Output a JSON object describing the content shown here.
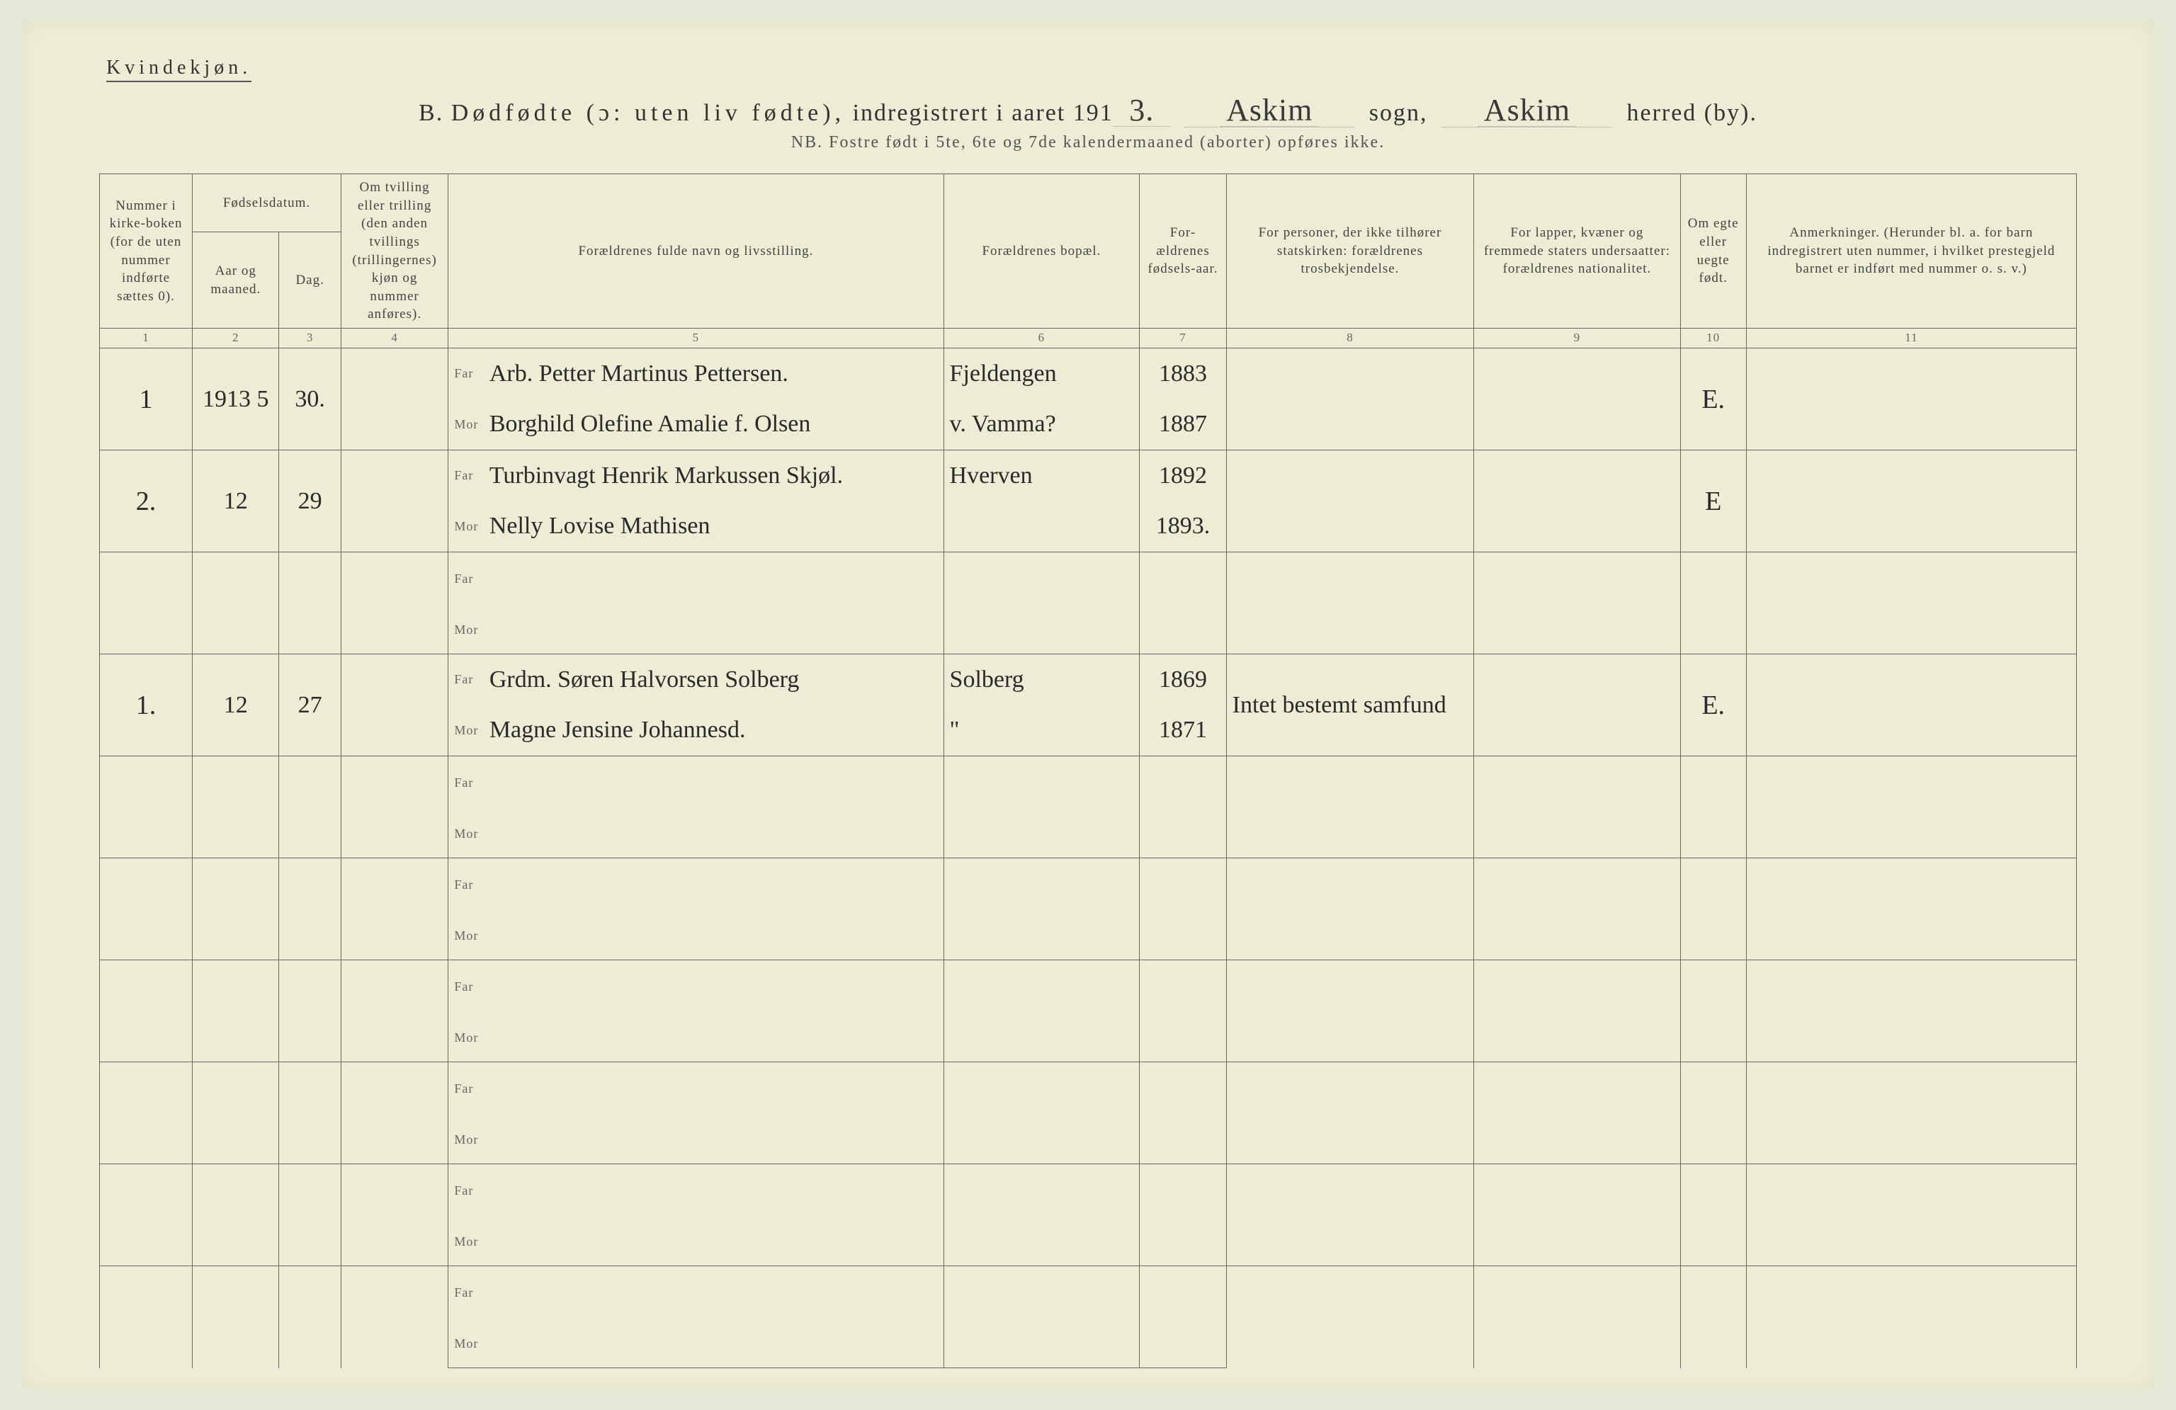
{
  "top_label": "Kvindekjøn.",
  "header": {
    "prefix": "B.",
    "title_sp": "Dødfødte (ɔ: uten liv fødte),",
    "registered": "indregistrert i aaret 191",
    "year_suffix": "3.",
    "sogn_value": "Askim",
    "sogn_label": "sogn,",
    "herred_value": "Askim",
    "herred_label": "herred (by)."
  },
  "nb_line": "NB. Fostre født i 5te, 6te og 7de kalendermaaned (aborter) opføres ikke.",
  "columns": {
    "c1": "Nummer i kirke-boken (for de uten nummer indførte sættes 0).",
    "c2_top": "Fødselsdatum.",
    "c2a": "Aar og maaned.",
    "c2b": "Dag.",
    "c4": "Om tvilling eller trilling (den anden tvillings (trillingernes) kjøn og nummer anføres).",
    "c5": "Forældrenes fulde navn og livsstilling.",
    "c6": "Forældrenes bopæl.",
    "c7": "For-ældrenes fødsels-aar.",
    "c8": "For personer, der ikke tilhører statskirken: forældrenes trosbekjendelse.",
    "c9": "For lapper, kvæner og fremmede staters undersaatter: forældrenes nationalitet.",
    "c10": "Om egte eller uegte født.",
    "c11": "Anmerkninger. (Herunder bl. a. for barn indregistrert uten nummer, i hvilket prestegjeld barnet er indført med nummer o. s. v.)"
  },
  "colnums": [
    "1",
    "2",
    "3",
    "4",
    "5",
    "6",
    "7",
    "8",
    "9",
    "10",
    "11"
  ],
  "far_label": "Far",
  "mor_label": "Mor",
  "rows": [
    {
      "num": "1",
      "year_month": "1913 5",
      "day": "30.",
      "twin": "",
      "far_name": "Arb. Petter Martinus Pettersen.",
      "mor_name": "Borghild Olefine Amalie f. Olsen",
      "far_bopel": "Fjeldengen",
      "mor_bopel": "v. Vamma?",
      "far_year": "1883",
      "mor_year": "1887",
      "tros": "",
      "nat": "",
      "egte": "E.",
      "anm": ""
    },
    {
      "num": "2.",
      "year_month": "12",
      "day": "29",
      "twin": "",
      "far_name": "Turbinvagt Henrik Markussen Skjøl.",
      "mor_name": "Nelly Lovise Mathisen",
      "far_bopel": "Hverven",
      "mor_bopel": "",
      "far_year": "1892",
      "mor_year": "1893.",
      "tros": "",
      "nat": "",
      "egte": "E",
      "anm": ""
    },
    {
      "num": "",
      "year_month": "",
      "day": "",
      "twin": "",
      "far_name": "",
      "mor_name": "",
      "far_bopel": "",
      "mor_bopel": "",
      "far_year": "",
      "mor_year": "",
      "tros": "",
      "nat": "",
      "egte": "",
      "anm": ""
    },
    {
      "num": "1.",
      "year_month": "12",
      "day": "27",
      "twin": "",
      "far_name": "Grdm. Søren Halvorsen Solberg",
      "mor_name": "Magne Jensine Johannesd.",
      "far_bopel": "Solberg",
      "mor_bopel": "\"",
      "far_year": "1869",
      "mor_year": "1871",
      "tros": "Intet bestemt samfund",
      "nat": "",
      "egte": "E.",
      "anm": ""
    },
    {
      "num": "",
      "year_month": "",
      "day": "",
      "twin": "",
      "far_name": "",
      "mor_name": "",
      "far_bopel": "",
      "mor_bopel": "",
      "far_year": "",
      "mor_year": "",
      "tros": "",
      "nat": "",
      "egte": "",
      "anm": ""
    },
    {
      "num": "",
      "year_month": "",
      "day": "",
      "twin": "",
      "far_name": "",
      "mor_name": "",
      "far_bopel": "",
      "mor_bopel": "",
      "far_year": "",
      "mor_year": "",
      "tros": "",
      "nat": "",
      "egte": "",
      "anm": ""
    },
    {
      "num": "",
      "year_month": "",
      "day": "",
      "twin": "",
      "far_name": "",
      "mor_name": "",
      "far_bopel": "",
      "mor_bopel": "",
      "far_year": "",
      "mor_year": "",
      "tros": "",
      "nat": "",
      "egte": "",
      "anm": ""
    },
    {
      "num": "",
      "year_month": "",
      "day": "",
      "twin": "",
      "far_name": "",
      "mor_name": "",
      "far_bopel": "",
      "mor_bopel": "",
      "far_year": "",
      "mor_year": "",
      "tros": "",
      "nat": "",
      "egte": "",
      "anm": ""
    },
    {
      "num": "",
      "year_month": "",
      "day": "",
      "twin": "",
      "far_name": "",
      "mor_name": "",
      "far_bopel": "",
      "mor_bopel": "",
      "far_year": "",
      "mor_year": "",
      "tros": "",
      "nat": "",
      "egte": "",
      "anm": ""
    },
    {
      "num": "",
      "year_month": "",
      "day": "",
      "twin": "",
      "far_name": "",
      "mor_name": "",
      "far_bopel": "",
      "mor_bopel": "",
      "far_year": "",
      "mor_year": "",
      "tros": "",
      "nat": "",
      "egte": "",
      "anm": ""
    }
  ]
}
